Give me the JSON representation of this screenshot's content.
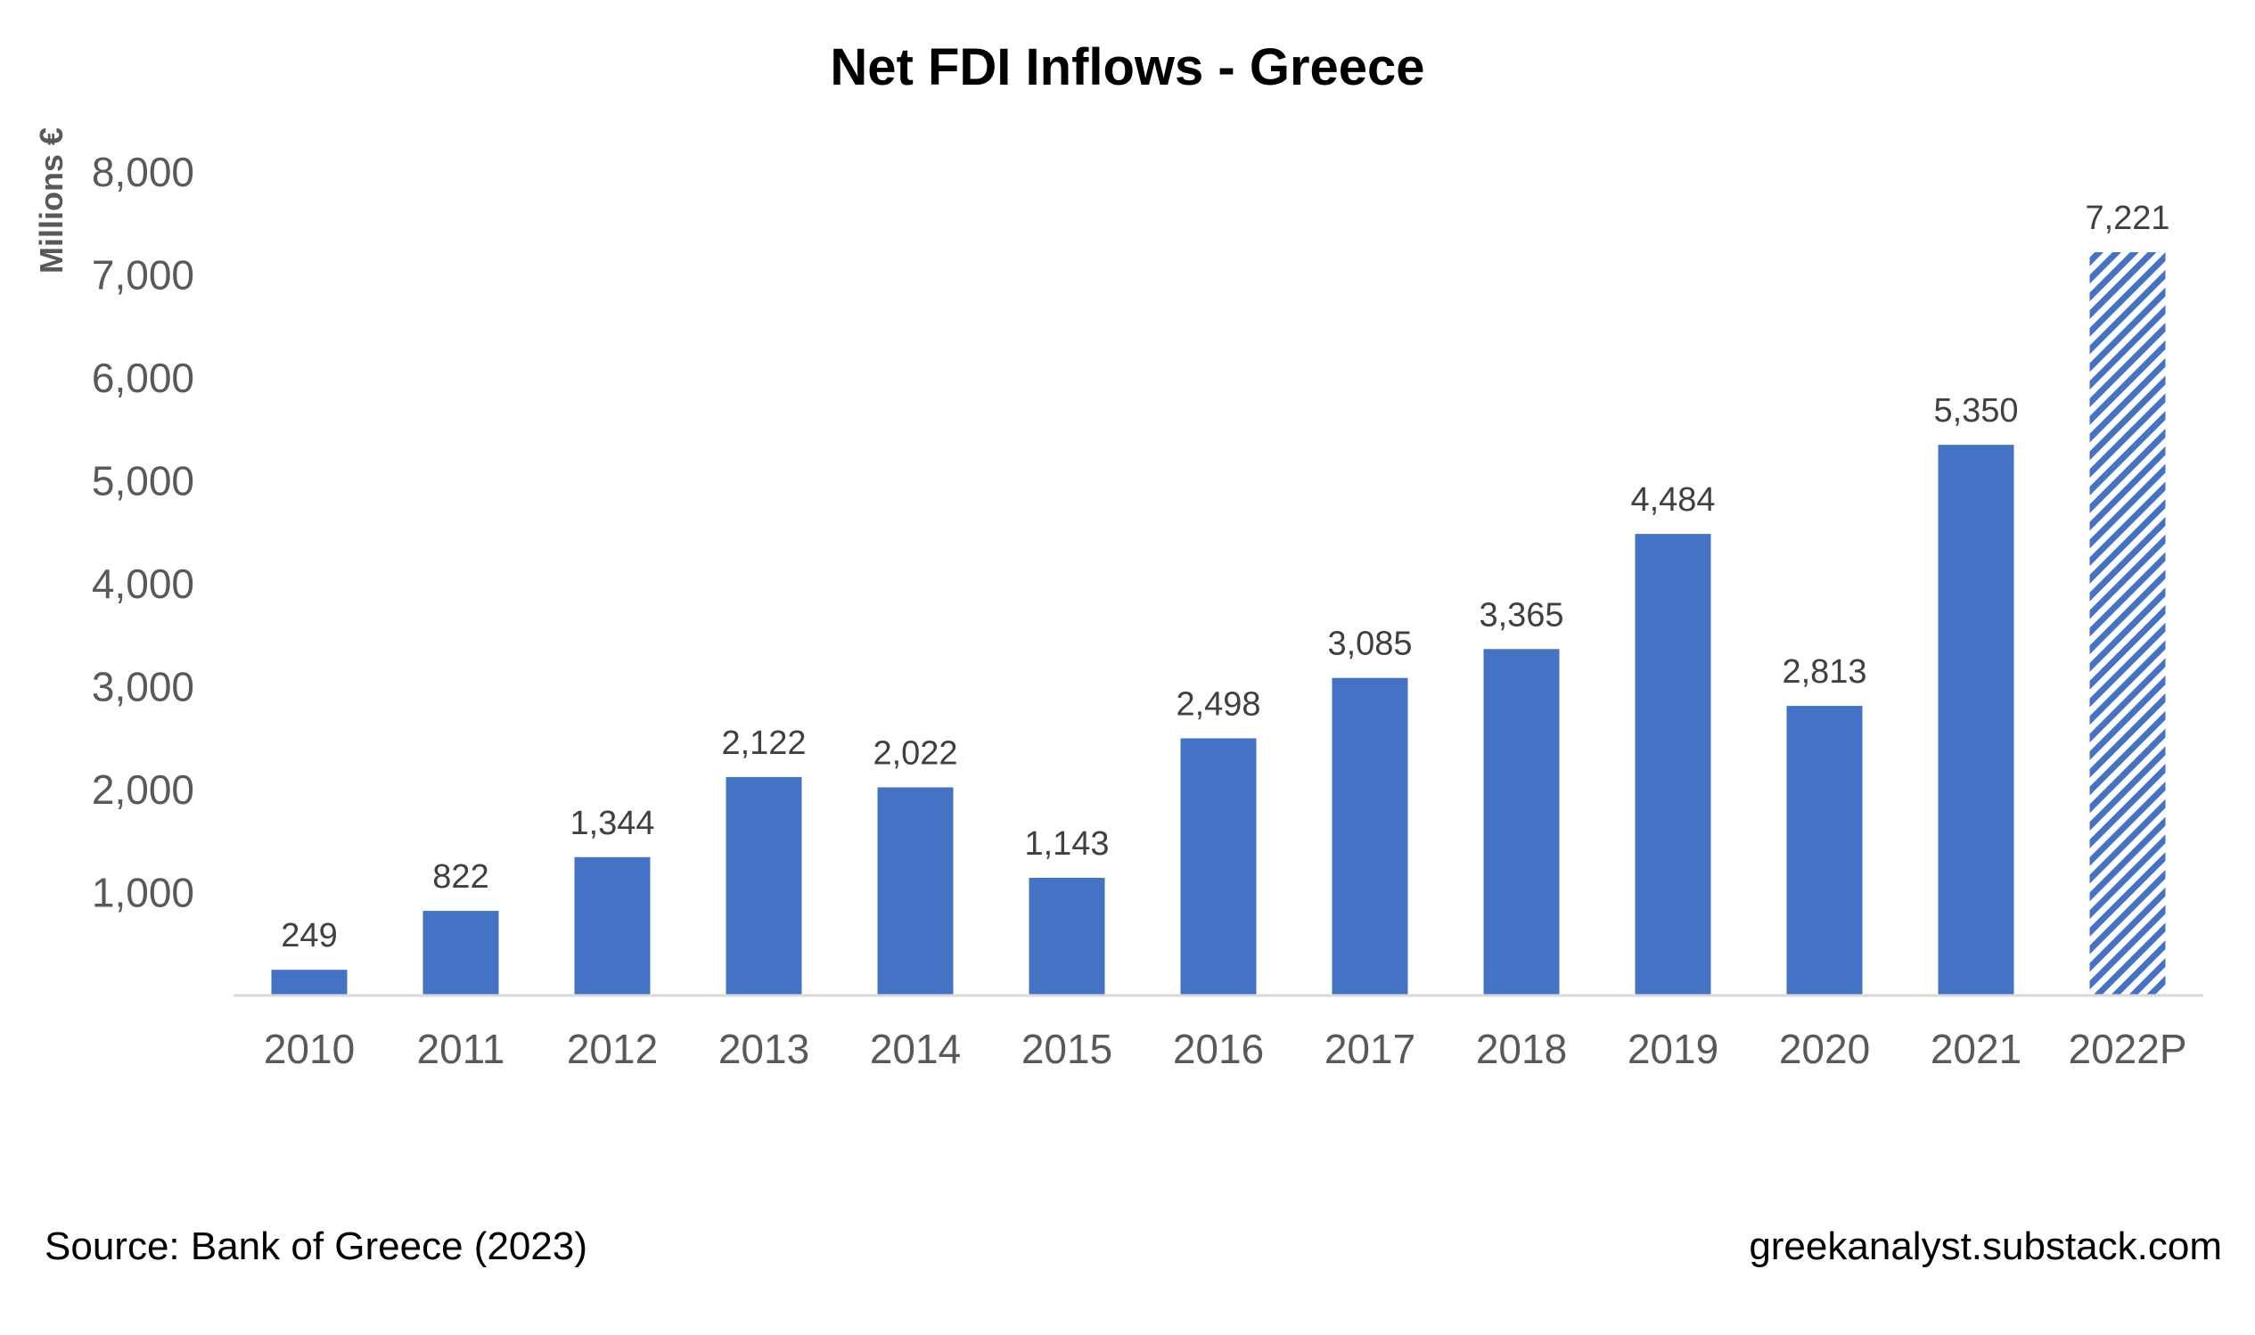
{
  "chart_data": {
    "type": "bar",
    "title": "Net FDI Inflows - Greece",
    "ylabel": "Millions €",
    "xlabel": "",
    "categories": [
      "2010",
      "2011",
      "2012",
      "2013",
      "2014",
      "2015",
      "2016",
      "2017",
      "2018",
      "2019",
      "2020",
      "2021",
      "2022P"
    ],
    "values": [
      249,
      822,
      1344,
      2122,
      2022,
      1143,
      2498,
      3085,
      3365,
      4484,
      2813,
      5350,
      7221
    ],
    "data_labels": [
      "249",
      "822",
      "1,344",
      "2,122",
      "2,022",
      "1,143",
      "2,498",
      "3,085",
      "3,365",
      "4,484",
      "2,813",
      "5,350",
      "7,221"
    ],
    "ylim": [
      0,
      8000
    ],
    "yticks": [
      1000,
      2000,
      3000,
      4000,
      5000,
      6000,
      7000,
      8000
    ],
    "ytick_labels": [
      "1,000",
      "2,000",
      "3,000",
      "4,000",
      "5,000",
      "6,000",
      "7,000",
      "8,000"
    ],
    "grid": false,
    "legend": "none",
    "bar_color": "#4472C4",
    "projected_categories": [
      "2022P"
    ],
    "projected_fill": "hatched"
  },
  "footer": {
    "source": "Source: Bank of Greece (2023)",
    "credit": "greekanalyst.substack.com"
  }
}
